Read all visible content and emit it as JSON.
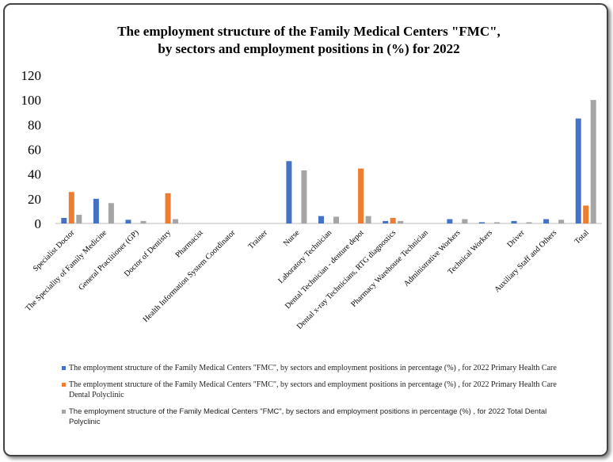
{
  "chart_data": {
    "type": "bar",
    "title": [
      "The employment structure of the Family Medical Centers \"FMC\",",
      "by sectors and employment positions in (%) for 2022"
    ],
    "categories": [
      "Specialist Doctor",
      "The Speciality of Family Medicine",
      "General Practitioner (GP)",
      "Doctor of Dentistry",
      "Pharmacist",
      "Health Information System Coordinator",
      "Trainer",
      "Nurse",
      "Laboratory Technician",
      "Dental Technician - denture depot",
      "Dental x-ray Technicians, RTG diagnostics",
      "Pharmacy Warehouse Technician",
      "Administrative Workers",
      "Technical Workers",
      "Driver",
      "Auxiliary Staff and Others",
      "Total"
    ],
    "series": [
      {
        "name": "The employment structure of the Family Medical Centers \"FMC\", by sectors and  employment positions in percentage (%) , for 2022 Primary Health Care",
        "color": "#4472c4",
        "values": [
          4.5,
          20,
          3,
          0,
          0,
          0,
          0,
          50.5,
          6,
          0,
          2,
          0,
          3.5,
          1,
          2,
          3.5,
          85
        ]
      },
      {
        "name": "The employment structure of the Family Medical Centers \"FMC\", by sectors and  employment positions in percentage (%) , for 2022 Primary Health Care Dental Polyclinic",
        "color": "#ed7d31",
        "values": [
          25.5,
          0,
          0,
          24.5,
          0,
          0,
          0,
          0,
          0,
          44.5,
          4.5,
          0,
          0,
          0,
          0,
          0,
          14.5
        ]
      },
      {
        "name": "The employment structure of the Family Medical Centers \"FMC\", by sectors and  employment positions in percentage (%) , for 2022 Total Dental Polyclinic",
        "color": "#a5a5a5",
        "values": [
          7,
          16.5,
          2,
          3.5,
          0,
          0,
          0,
          43,
          5.5,
          6,
          2,
          0,
          3.5,
          1,
          1,
          3,
          100
        ]
      }
    ],
    "ylim": [
      0,
      120
    ],
    "yticks": [
      0,
      20,
      40,
      60,
      80,
      100,
      120
    ],
    "grid": false
  }
}
